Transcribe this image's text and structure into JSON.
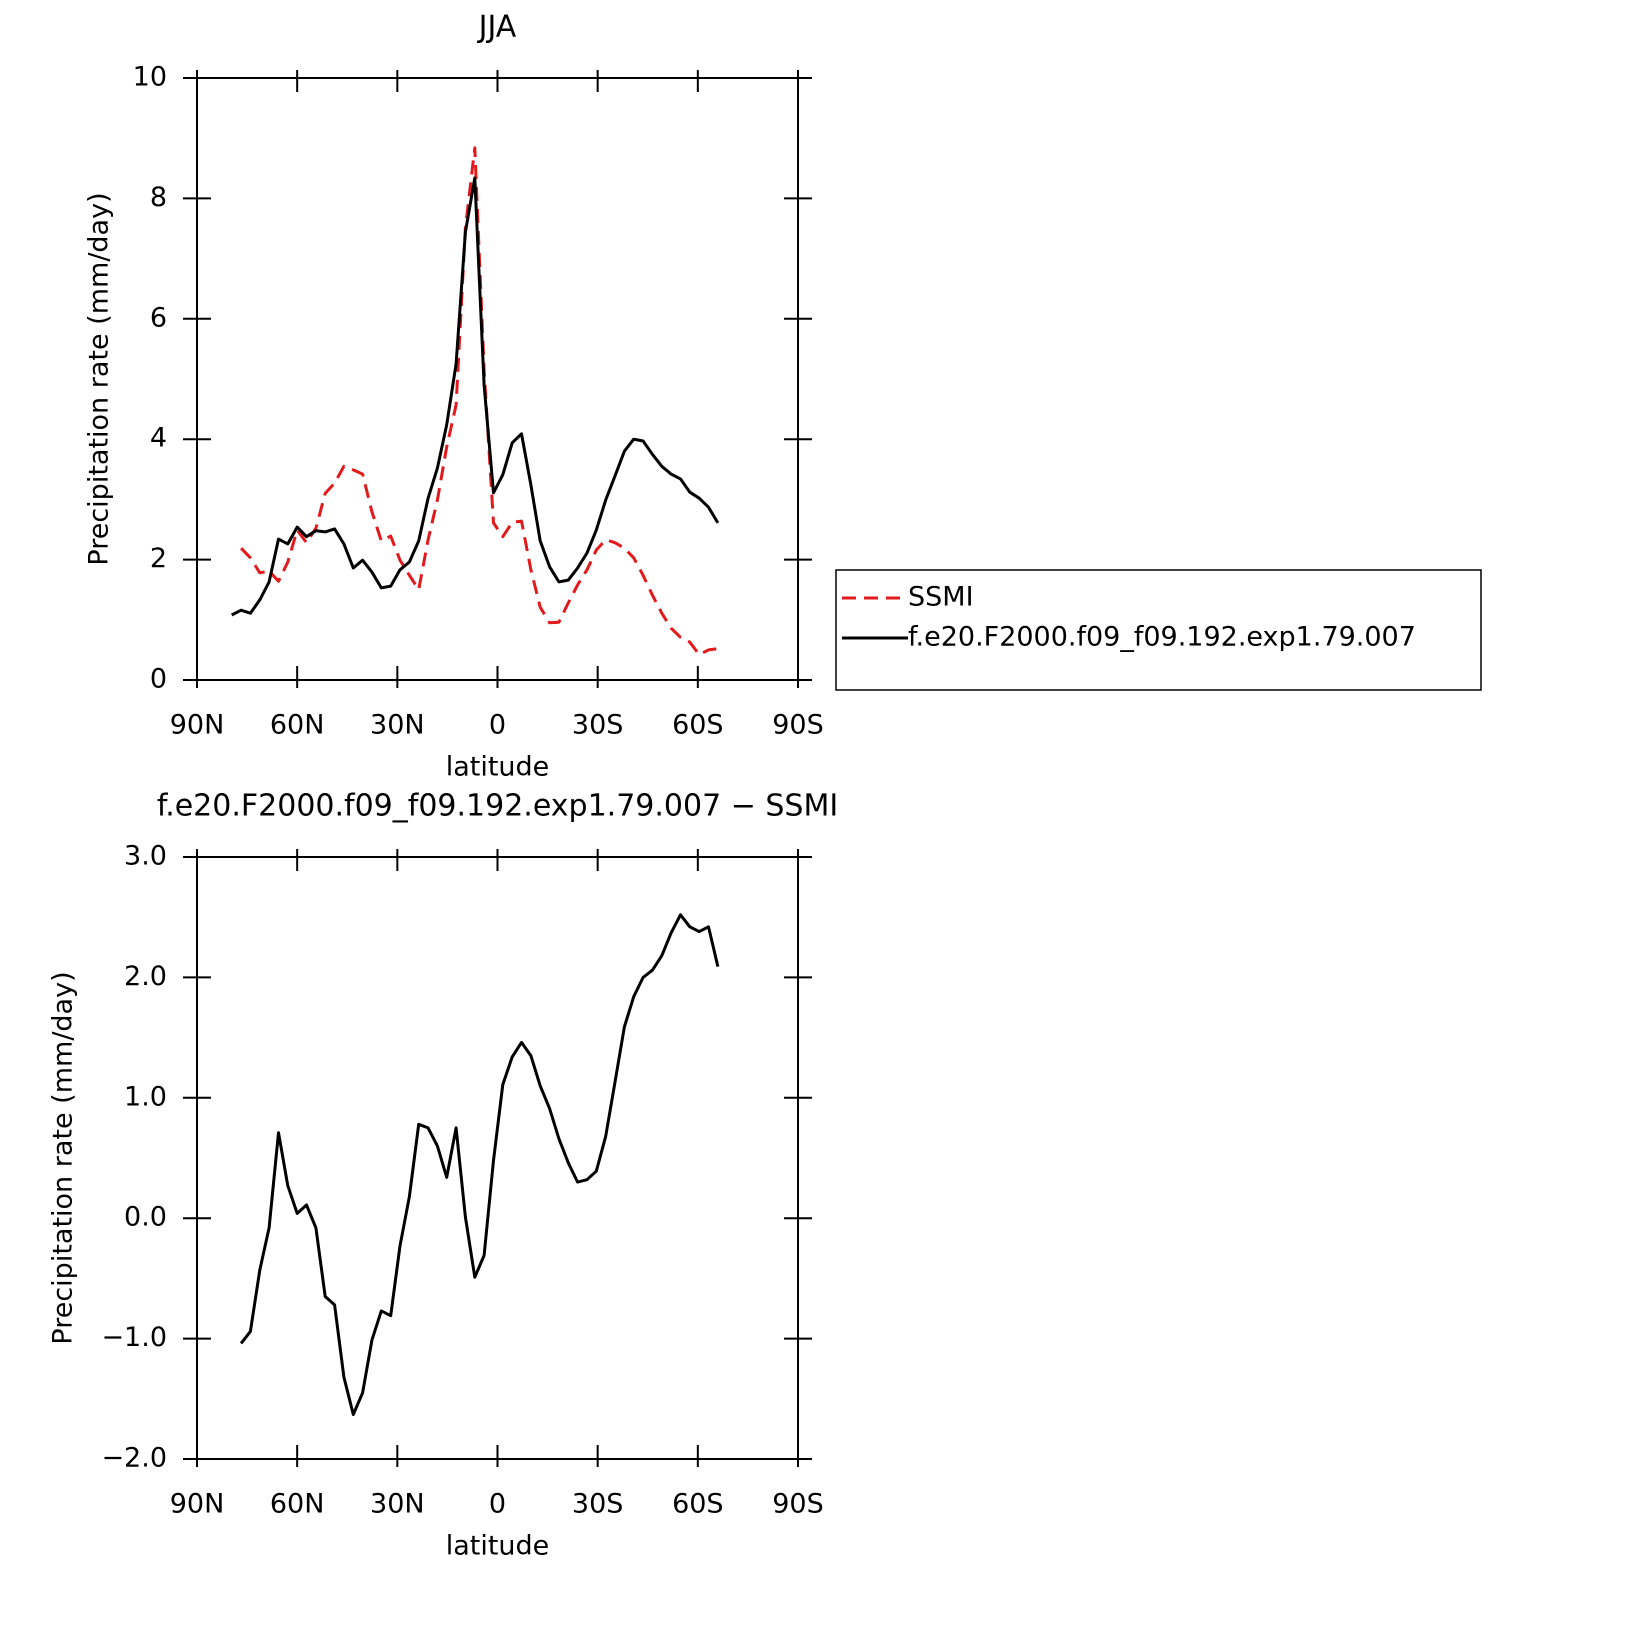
{
  "chart_data": [
    {
      "type": "line",
      "title": "JJA",
      "x_label": "latitude",
      "y_label": "Precipitation rate (mm/day)",
      "x": [
        79.6,
        76.8,
        74,
        71.2,
        68.4,
        65.6,
        62.8,
        60,
        57.2,
        54.4,
        51.6,
        48.8,
        46,
        43.2,
        40.4,
        37.6,
        34.8,
        32,
        29.2,
        26.4,
        23.6,
        20.8,
        18,
        15.2,
        12.4,
        9.6,
        6.8,
        4,
        1.2,
        -1.6,
        -4.4,
        -7.2,
        -10,
        -12.8,
        -15.6,
        -18.4,
        -21.2,
        -24,
        -26.8,
        -29.6,
        -32.4,
        -35.2,
        -38,
        -40.8,
        -43.6,
        -46.4,
        -49.2,
        -52,
        -54.8,
        -57.6,
        -60.4,
        -63.2,
        -66
      ],
      "xlim": [
        90,
        -90
      ],
      "xticks": [
        {
          "value": 90,
          "label": "90N"
        },
        {
          "value": 60,
          "label": "60N"
        },
        {
          "value": 30,
          "label": "30N"
        },
        0,
        {
          "value": -30,
          "label": "30S"
        },
        {
          "value": -60,
          "label": "60S"
        },
        {
          "value": -90,
          "label": "90S"
        }
      ],
      "ylim": [
        0,
        10
      ],
      "yticks": [
        0,
        2,
        4,
        6,
        8,
        10
      ],
      "legend": "right",
      "series": [
        {
          "name": "SSMI",
          "color": "#e31a1c",
          "dash": "dashed",
          "values": [
            null,
            2.19,
            2.03,
            1.78,
            1.81,
            1.64,
            1.96,
            2.49,
            2.28,
            2.52,
            3.1,
            3.27,
            3.55,
            3.49,
            3.42,
            2.79,
            2.31,
            2.39,
            1.99,
            1.74,
            1.5,
            2.33,
            2.99,
            3.87,
            4.57,
            7.51,
            8.84,
            5.15,
            2.61,
            2.38,
            2.62,
            2.64,
            1.83,
            1.21,
            0.95,
            0.96,
            1.28,
            1.58,
            1.83,
            2.16,
            2.33,
            2.28,
            2.19,
            2.03,
            1.74,
            1.41,
            1.11,
            0.86,
            0.71,
            0.63,
            0.42,
            0.5,
            0.52
          ]
        },
        {
          "name": "f.e20.F2000.f09_f09.192.exp1.79.007",
          "color": "#000000",
          "dash": "solid",
          "values": [
            1.08,
            1.16,
            1.11,
            1.33,
            1.63,
            2.34,
            2.26,
            2.54,
            2.38,
            2.48,
            2.46,
            2.51,
            2.26,
            1.86,
            1.99,
            1.79,
            1.53,
            1.56,
            1.83,
            1.96,
            2.31,
            3.02,
            3.52,
            4.24,
            5.25,
            7.44,
            8.34,
            4.9,
            3.11,
            3.41,
            3.94,
            4.09,
            3.24,
            2.31,
            1.88,
            1.63,
            1.66,
            1.86,
            2.11,
            2.49,
            2.99,
            3.39,
            3.8,
            4.0,
            3.97,
            3.75,
            3.55,
            3.42,
            3.34,
            3.12,
            3.02,
            2.87,
            2.61
          ]
        }
      ]
    },
    {
      "type": "line",
      "title": "f.e20.F2000.f09_f09.192.exp1.79.007 − SSMI",
      "x_label": "latitude",
      "y_label": "Precipitation rate (mm/day)",
      "x": [
        79.6,
        76.8,
        74,
        71.2,
        68.4,
        65.6,
        62.8,
        60,
        57.2,
        54.4,
        51.6,
        48.8,
        46,
        43.2,
        40.4,
        37.6,
        34.8,
        32,
        29.2,
        26.4,
        23.6,
        20.8,
        18,
        15.2,
        12.4,
        9.6,
        6.8,
        4,
        1.2,
        -1.6,
        -4.4,
        -7.2,
        -10,
        -12.8,
        -15.6,
        -18.4,
        -21.2,
        -24,
        -26.8,
        -29.6,
        -32.4,
        -35.2,
        -38,
        -40.8,
        -43.6,
        -46.4,
        -49.2,
        -52,
        -54.8,
        -57.6,
        -60.4,
        -63.2,
        -66
      ],
      "xlim": [
        90,
        -90
      ],
      "xticks": [
        {
          "value": 90,
          "label": "90N"
        },
        {
          "value": 60,
          "label": "60N"
        },
        {
          "value": 30,
          "label": "30N"
        },
        0,
        {
          "value": -30,
          "label": "30S"
        },
        {
          "value": -60,
          "label": "60S"
        },
        {
          "value": -90,
          "label": "90S"
        }
      ],
      "ylim": [
        -2,
        3
      ],
      "yticks": [
        {
          "value": -2,
          "label": "−2.0"
        },
        {
          "value": -1,
          "label": "−1.0"
        },
        {
          "value": 0,
          "label": "0.0"
        },
        {
          "value": 1,
          "label": "1.0"
        },
        {
          "value": 2,
          "label": "2.0"
        },
        {
          "value": 3,
          "label": "3.0"
        }
      ],
      "series": [
        {
          "color": "#000000",
          "dash": "solid",
          "values": [
            null,
            -1.04,
            -0.94,
            -0.43,
            -0.08,
            0.71,
            0.27,
            0.04,
            0.11,
            -0.08,
            -0.65,
            -0.72,
            -1.32,
            -1.63,
            -1.45,
            -1.01,
            -0.77,
            -0.81,
            -0.23,
            0.18,
            0.78,
            0.75,
            0.6,
            0.34,
            0.75,
            0.01,
            -0.49,
            -0.31,
            0.48,
            1.11,
            1.34,
            1.46,
            1.35,
            1.1,
            0.91,
            0.66,
            0.46,
            0.3,
            0.32,
            0.39,
            0.68,
            1.13,
            1.59,
            1.84,
            2.0,
            2.06,
            2.18,
            2.37,
            2.52,
            2.42,
            2.38,
            2.42,
            2.09
          ]
        }
      ]
    }
  ]
}
